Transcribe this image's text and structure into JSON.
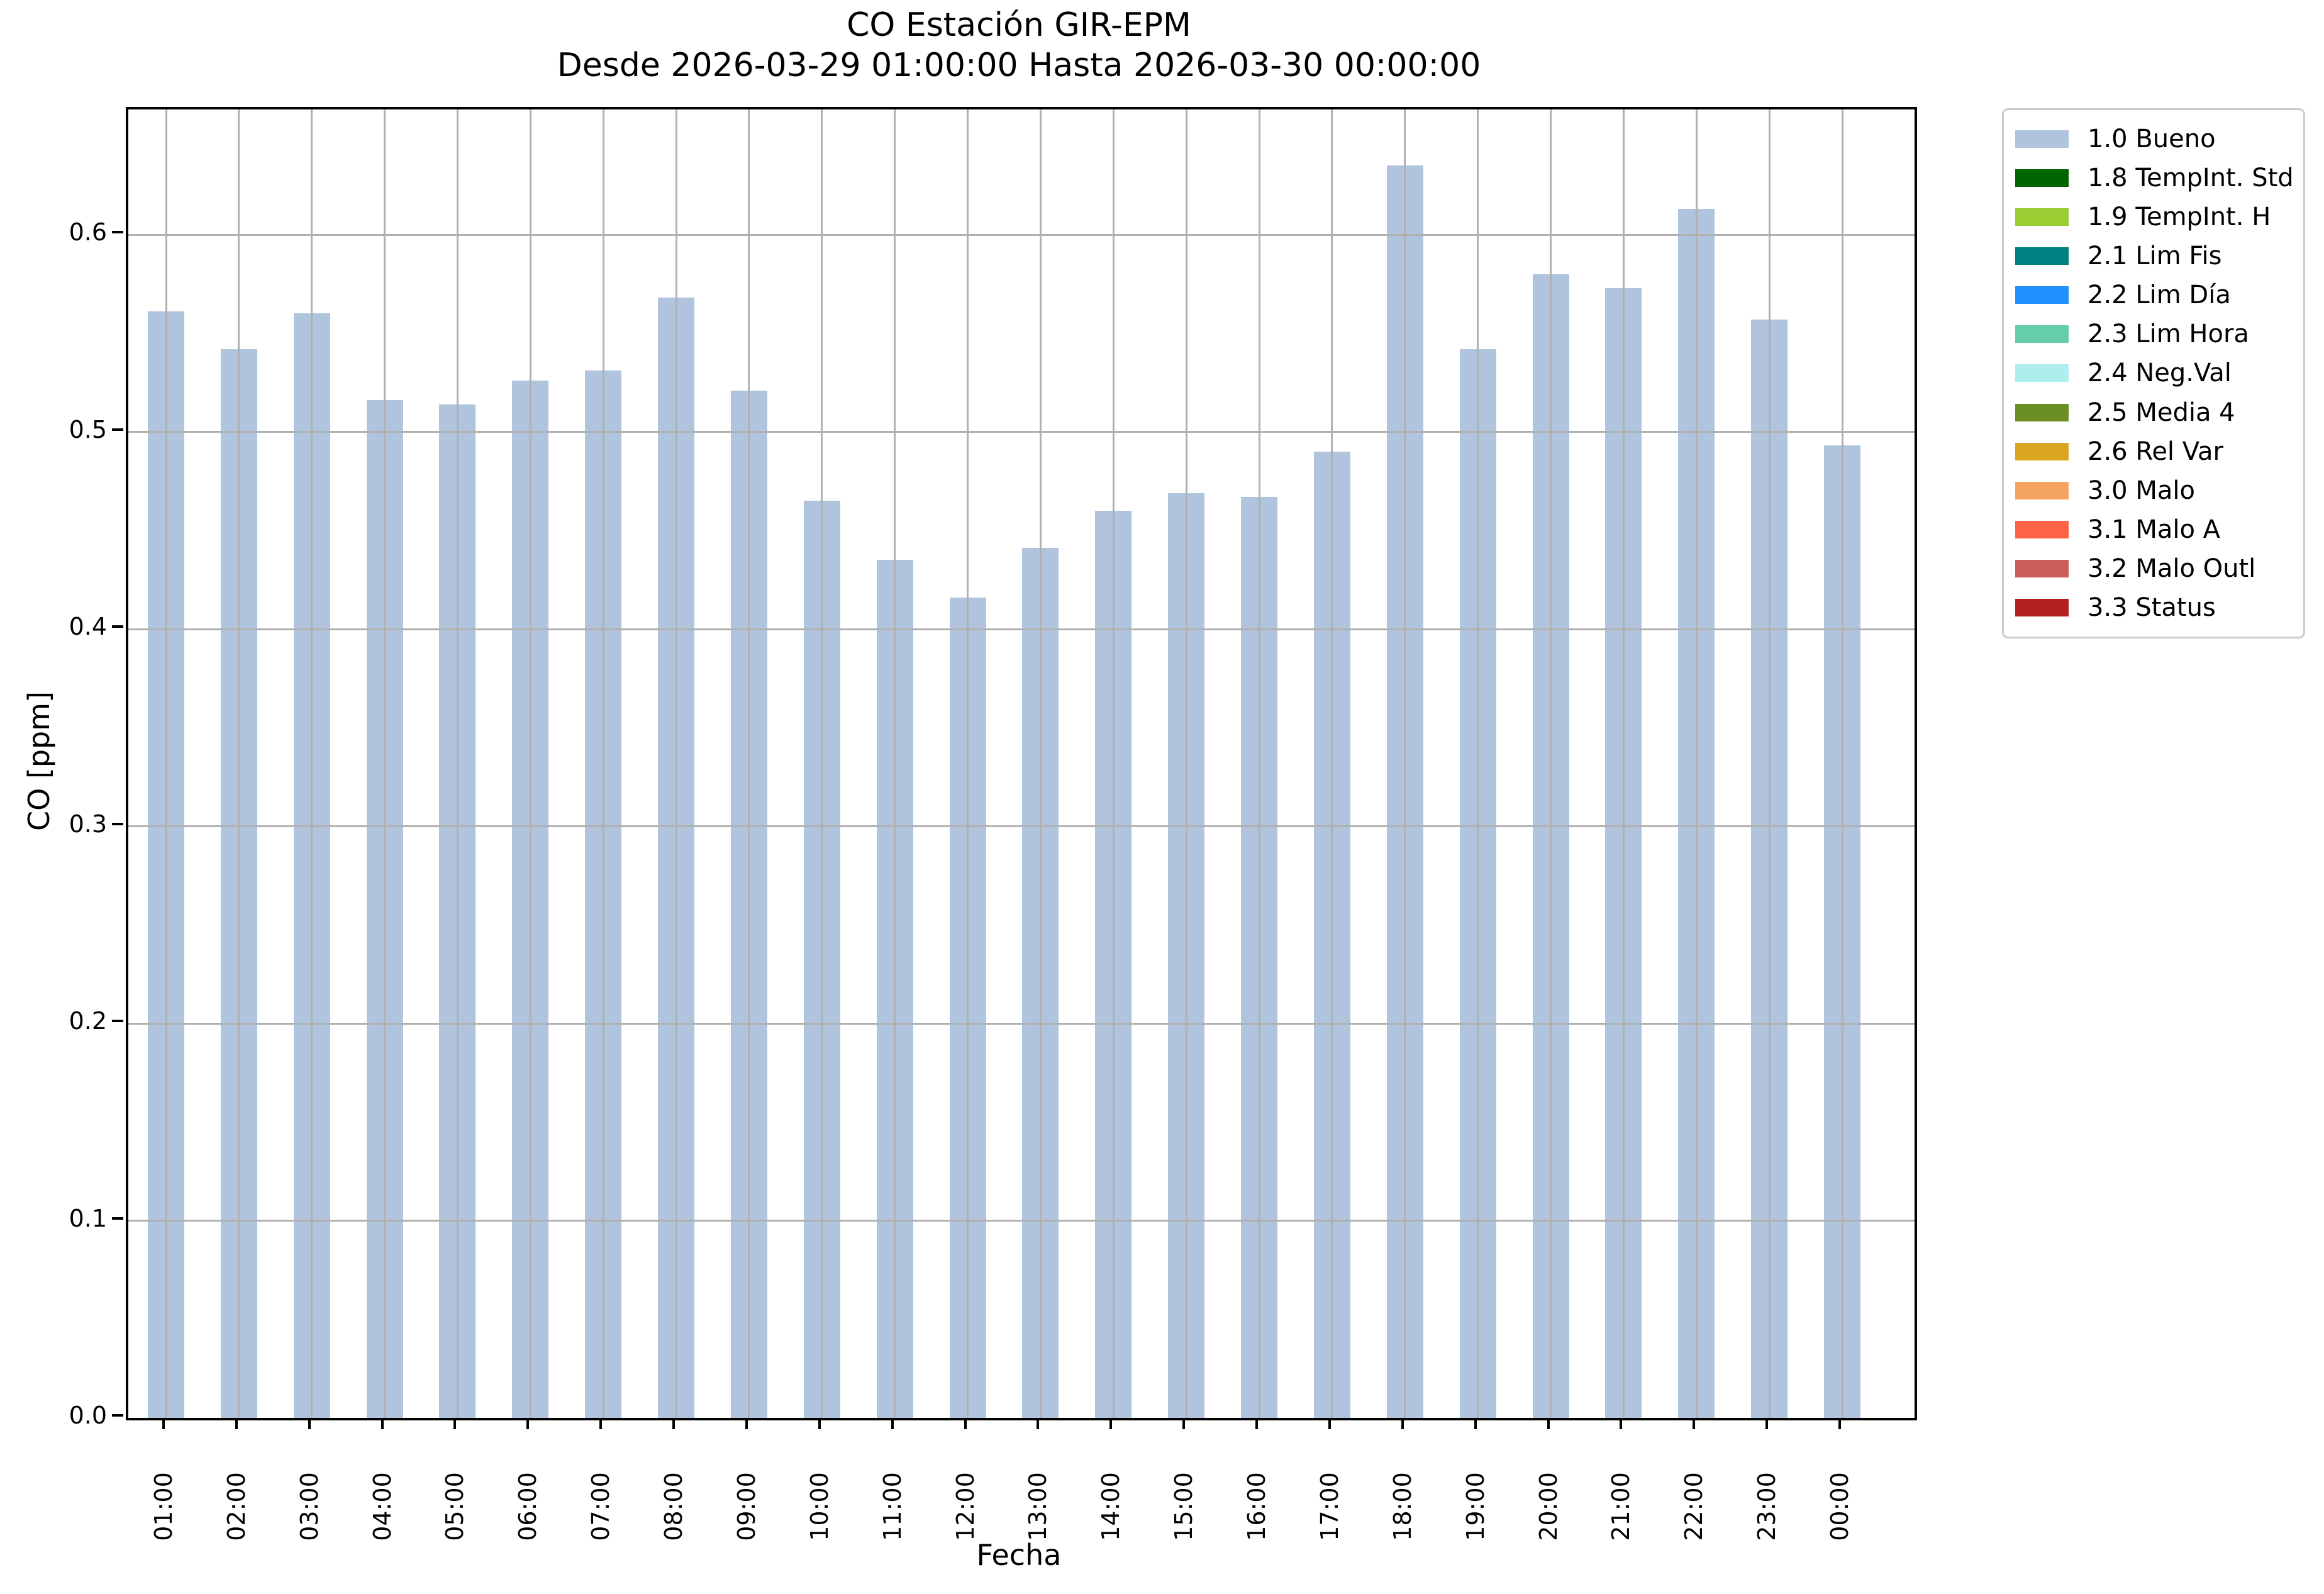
{
  "figure": {
    "title": "CO Estación GIR-EPM",
    "subtitle": "Desde 2026-03-29 01:00:00 Hasta 2026-03-30 00:00:00",
    "xlabel": "Fecha",
    "ylabel": "CO [ppm]"
  },
  "chart_data": {
    "type": "bar",
    "title": "CO Estación GIR-EPM",
    "subtitle": "Desde 2026-03-29 01:00:00 Hasta 2026-03-30 00:00:00",
    "xlabel": "Fecha",
    "ylabel": "CO [ppm]",
    "categories": [
      "01:00",
      "02:00",
      "03:00",
      "04:00",
      "05:00",
      "06:00",
      "07:00",
      "08:00",
      "09:00",
      "10:00",
      "11:00",
      "12:00",
      "13:00",
      "14:00",
      "15:00",
      "16:00",
      "17:00",
      "18:00",
      "19:00",
      "20:00",
      "21:00",
      "22:00",
      "23:00",
      "00:00"
    ],
    "values": [
      0.561,
      0.542,
      0.56,
      0.516,
      0.514,
      0.526,
      0.531,
      0.568,
      0.521,
      0.465,
      0.435,
      0.416,
      0.441,
      0.46,
      0.469,
      0.467,
      0.49,
      0.635,
      0.542,
      0.58,
      0.573,
      0.613,
      0.557,
      0.493
    ],
    "series_name": "1.0 Bueno",
    "bar_color": "#B0C4DE",
    "ylim": [
      0.0,
      0.6635
    ],
    "yticks": [
      0.0,
      0.1,
      0.2,
      0.3,
      0.4,
      0.5,
      0.6
    ],
    "grid": true,
    "legend_position": "outside-right",
    "legend": [
      {
        "label": "1.0 Bueno",
        "color": "#B0C4DE"
      },
      {
        "label": "1.8 TempInt. Std",
        "color": "#006400"
      },
      {
        "label": "1.9 TempInt. H",
        "color": "#9ACD32"
      },
      {
        "label": "2.1 Lim Fis",
        "color": "#008080"
      },
      {
        "label": "2.2 Lim Día",
        "color": "#1E90FF"
      },
      {
        "label": "2.3 Lim Hora",
        "color": "#66CDAA"
      },
      {
        "label": "2.4 Neg.Val",
        "color": "#AFEEEE"
      },
      {
        "label": "2.5 Media 4",
        "color": "#6B8E23"
      },
      {
        "label": "2.6 Rel Var",
        "color": "#DAA520"
      },
      {
        "label": "3.0 Malo",
        "color": "#F4A460"
      },
      {
        "label": "3.1 Malo A",
        "color": "#FF6347"
      },
      {
        "label": "3.2 Malo Outl",
        "color": "#CD5C5C"
      },
      {
        "label": "3.3 Status",
        "color": "#B22222"
      }
    ]
  },
  "colors": {
    "grid": "#b0b0b0",
    "spine": "#000000",
    "background": "#ffffff",
    "text": "#000000"
  }
}
